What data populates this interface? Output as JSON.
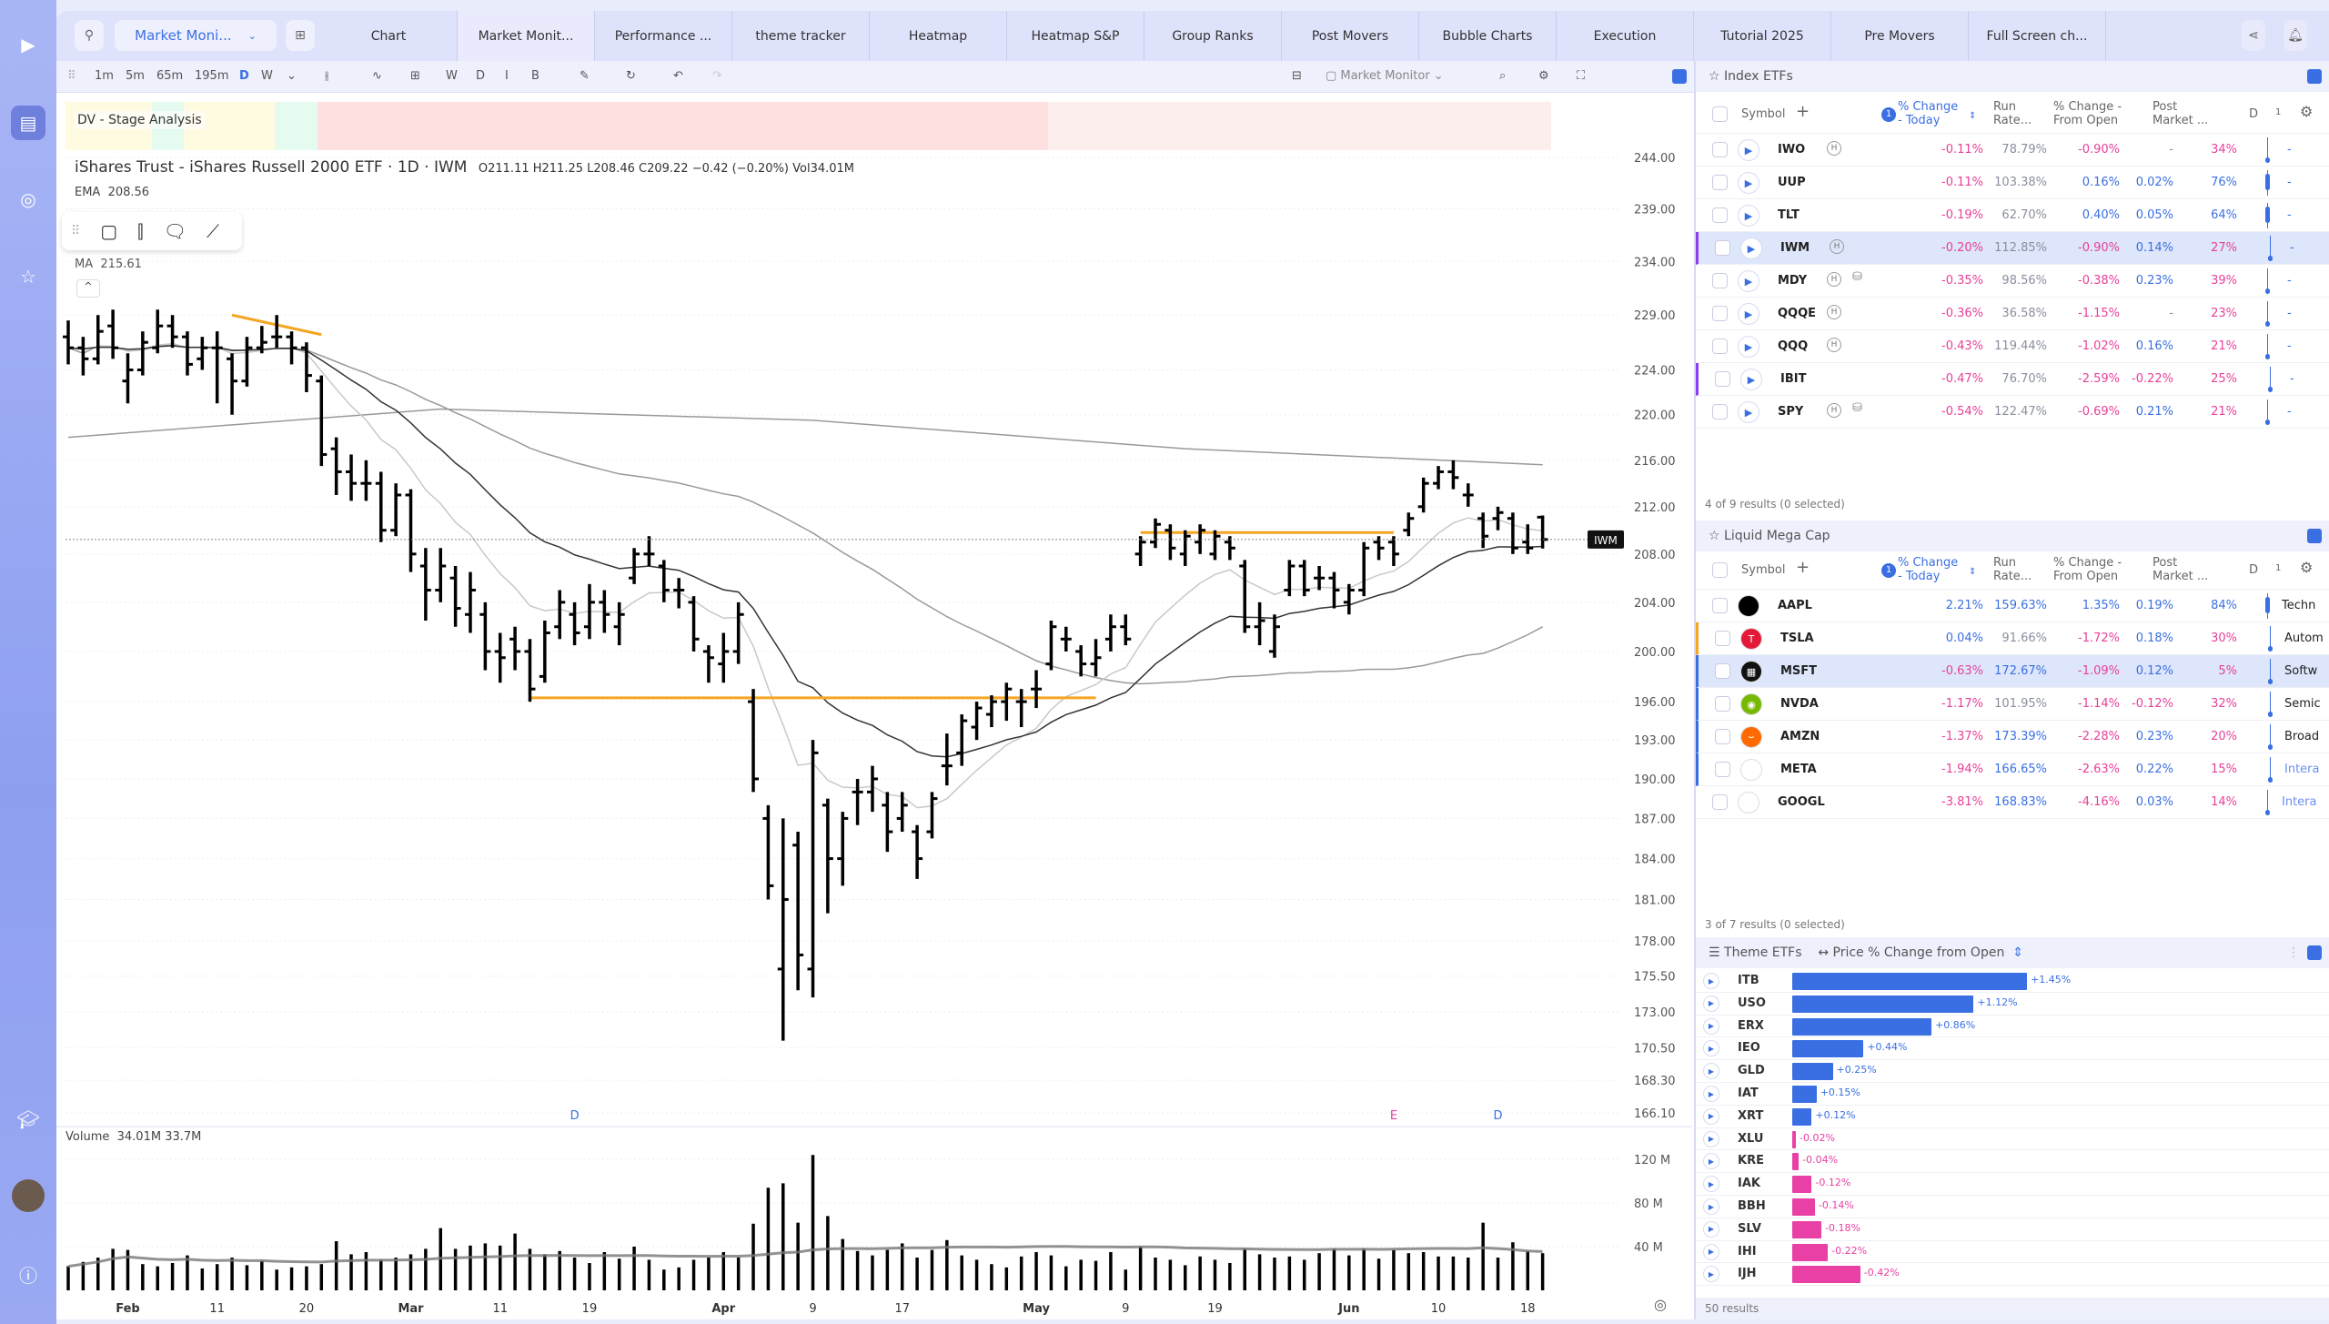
{
  "topbar": {
    "layout_select": "Market Moni...",
    "tabs": [
      "Chart",
      "Market Monit...",
      "Performance ...",
      "theme tracker",
      "Heatmap",
      "Heatmap S&P",
      "Group Ranks",
      "Post Movers",
      "Bubble Charts",
      "Execution",
      "Tutorial 2025",
      "Pre Movers",
      "Full Screen ch..."
    ],
    "active_tab": 1
  },
  "toolbar": {
    "intervals": [
      "1m",
      "5m",
      "65m",
      "195m",
      "D",
      "W"
    ],
    "active_interval": "D",
    "toggles": [
      "W",
      "D",
      "I",
      "B"
    ],
    "watchlist_select": "Market Monitor"
  },
  "chart": {
    "stage_label": "DV - Stage Analysis",
    "title": "iShares Trust - iShares Russell 2000 ETF · 1D · IWM",
    "ohlc_text": "O211.11 H211.25 L208.46 C209.22 −0.42 (−0.20%) Vol34.01M",
    "ema_label": "EMA",
    "ema_value": "208.56",
    "ma_label": "MA",
    "ma_value": "215.61",
    "price_tag": "IWM",
    "volume_label": "Volume",
    "volume_value": "34.01M",
    "volume_ma_value": "33.7M",
    "colors": {
      "bar": "#000000",
      "level": "#f5a623",
      "up": "#3a6fe3",
      "down": "#e8409a"
    }
  },
  "chart_data": {
    "type": "ohlc",
    "symbol": "IWM",
    "ylim": [
      166.1,
      244
    ],
    "yscale": "log",
    "price_ticks": [
      "244.00",
      "239.00",
      "234.00",
      "229.00",
      "224.00",
      "220.00",
      "216.00",
      "212.00",
      "208.00",
      "204.00",
      "200.00",
      "196.00",
      "193.00",
      "190.00",
      "187.00",
      "184.00",
      "181.00",
      "178.00",
      "175.50",
      "173.00",
      "170.50",
      "168.30",
      "166.10"
    ],
    "volume_ticks": [
      {
        "label": "120 M",
        "value": 120
      },
      {
        "label": "80 M",
        "value": 80
      },
      {
        "label": "40 M",
        "value": 40
      }
    ],
    "x_ticks": [
      {
        "label": "Feb",
        "i": 4
      },
      {
        "label": "11",
        "i": 10
      },
      {
        "label": "20",
        "i": 16
      },
      {
        "label": "Mar",
        "i": 23
      },
      {
        "label": "11",
        "i": 29
      },
      {
        "label": "19",
        "i": 35
      },
      {
        "label": "Apr",
        "i": 44
      },
      {
        "label": "9",
        "i": 50
      },
      {
        "label": "17",
        "i": 56
      },
      {
        "label": "May",
        "i": 65
      },
      {
        "label": "9",
        "i": 71
      },
      {
        "label": "19",
        "i": 77
      },
      {
        "label": "Jun",
        "i": 86
      },
      {
        "label": "10",
        "i": 92
      },
      {
        "label": "18",
        "i": 98
      }
    ],
    "events": [
      {
        "label": "D",
        "i": 34,
        "color": "#3a6fe3"
      },
      {
        "label": "E",
        "i": 89,
        "color": "#e8409a"
      },
      {
        "label": "D",
        "i": 96,
        "color": "#3a6fe3"
      }
    ],
    "levels": [
      {
        "from": 11,
        "to": 17,
        "p0": 229,
        "p1": 227.2
      },
      {
        "from": 31,
        "to": 69,
        "p0": 196.3,
        "p1": 196.3
      },
      {
        "from": 72,
        "to": 89,
        "p0": 209.8,
        "p1": 209.8
      }
    ],
    "last_price": 209.22,
    "ma200": [
      [
        0,
        218
      ],
      [
        25,
        220.5
      ],
      [
        50,
        219.5
      ],
      [
        75,
        217
      ],
      [
        99,
        215.61
      ]
    ],
    "ohlc": [
      [
        227,
        228.5,
        224.5,
        226
      ],
      [
        226,
        227,
        223.5,
        225
      ],
      [
        225,
        229,
        224.5,
        227.5
      ],
      [
        228,
        229.5,
        225,
        226
      ],
      [
        223,
        225.5,
        221,
        224
      ],
      [
        224,
        227.5,
        223.5,
        226.5
      ],
      [
        226,
        229.5,
        225.5,
        228
      ],
      [
        228,
        229,
        226,
        227
      ],
      [
        227,
        227.5,
        223.5,
        224.5
      ],
      [
        225,
        227,
        224,
        226
      ],
      [
        226,
        227.5,
        221,
        226
      ],
      [
        225,
        225.5,
        220,
        223
      ],
      [
        223,
        227,
        222.5,
        226
      ],
      [
        226,
        228,
        225.5,
        226.5
      ],
      [
        227,
        229,
        226,
        227
      ],
      [
        227,
        227.5,
        224.5,
        226
      ],
      [
        226,
        226.5,
        222,
        223.5
      ],
      [
        223,
        223.5,
        215.5,
        216.5
      ],
      [
        217,
        218,
        213,
        215
      ],
      [
        215,
        216.5,
        212.5,
        214
      ],
      [
        214,
        216,
        212.5,
        214
      ],
      [
        214,
        215,
        209,
        210
      ],
      [
        210,
        214,
        209.5,
        213
      ],
      [
        213,
        213.5,
        206.5,
        208
      ],
      [
        207,
        208.5,
        202.5,
        205
      ],
      [
        205,
        208.5,
        204,
        207
      ],
      [
        206,
        207,
        202,
        203.5
      ],
      [
        203,
        206.5,
        201.5,
        205
      ],
      [
        203,
        204,
        198.5,
        200
      ],
      [
        200,
        201.5,
        197.5,
        199.5
      ],
      [
        201,
        202,
        198.5,
        200
      ],
      [
        200,
        201,
        196,
        197
      ],
      [
        198,
        202.5,
        197.5,
        201.5
      ],
      [
        202,
        205,
        201,
        204
      ],
      [
        203,
        204,
        200.5,
        201.5
      ],
      [
        202,
        205.5,
        201,
        204
      ],
      [
        204,
        205,
        201.5,
        203
      ],
      [
        202,
        204,
        200.5,
        203
      ],
      [
        206,
        208.5,
        205.5,
        208
      ],
      [
        208,
        209.5,
        207,
        208
      ],
      [
        207,
        207.5,
        204,
        205
      ],
      [
        205,
        206,
        203.5,
        205
      ],
      [
        204,
        204.5,
        200,
        201
      ],
      [
        200,
        200.5,
        197.5,
        199.5
      ],
      [
        199,
        201.5,
        197.5,
        200
      ],
      [
        200,
        204,
        199,
        203
      ],
      [
        196,
        197,
        189,
        190
      ],
      [
        187,
        188,
        181,
        182
      ],
      [
        176,
        187,
        171,
        181
      ],
      [
        185,
        186,
        174.5,
        177
      ],
      [
        176,
        193,
        174,
        192
      ],
      [
        188,
        188.5,
        180,
        184
      ],
      [
        184,
        187.5,
        182,
        187
      ],
      [
        189,
        190,
        186.5,
        189
      ],
      [
        189,
        191,
        187.5,
        190
      ],
      [
        188,
        189,
        184.5,
        186
      ],
      [
        187,
        189,
        186,
        188
      ],
      [
        186,
        186.5,
        182.5,
        184
      ],
      [
        186,
        189,
        185.5,
        188.5
      ],
      [
        191,
        193.5,
        189.5,
        191
      ],
      [
        192,
        195,
        191,
        194.5
      ],
      [
        194,
        196,
        193,
        195.5
      ],
      [
        195,
        196.5,
        194,
        196
      ],
      [
        196,
        197.5,
        194.5,
        197
      ],
      [
        196,
        197,
        194,
        196
      ],
      [
        197,
        198.5,
        195.5,
        197
      ],
      [
        199,
        202.5,
        198.5,
        202
      ],
      [
        201,
        202,
        200,
        201
      ],
      [
        200,
        200.5,
        198,
        199
      ],
      [
        199,
        201,
        198,
        199.5
      ],
      [
        201,
        203,
        200,
        202
      ],
      [
        202,
        203,
        200.5,
        201
      ],
      [
        208,
        209.5,
        207,
        209
      ],
      [
        209,
        211,
        208.5,
        210.5
      ],
      [
        210,
        210.5,
        207.5,
        208.5
      ],
      [
        208,
        210,
        207,
        209.5
      ],
      [
        209,
        210.5,
        208,
        210
      ],
      [
        208,
        210,
        207.5,
        209.5
      ],
      [
        209,
        209.5,
        207.5,
        208.5
      ],
      [
        207,
        207.5,
        201.5,
        202
      ],
      [
        202,
        204,
        200.5,
        202.5
      ],
      [
        200,
        203,
        199.5,
        202
      ],
      [
        205,
        207.5,
        204.5,
        207
      ],
      [
        207,
        207.5,
        204.5,
        205
      ],
      [
        206,
        207,
        205,
        206
      ],
      [
        206,
        206.5,
        203.5,
        205
      ],
      [
        204,
        205.5,
        203,
        205
      ],
      [
        205,
        209,
        204.5,
        208.5
      ],
      [
        209,
        209.5,
        207.5,
        208.5
      ],
      [
        209,
        209.5,
        207,
        208
      ],
      [
        210,
        211.5,
        209.5,
        211
      ],
      [
        212,
        214.5,
        211.5,
        214
      ],
      [
        214,
        215.5,
        213.5,
        215
      ],
      [
        215,
        216,
        213.5,
        214.5
      ],
      [
        213,
        214,
        212,
        213
      ],
      [
        211,
        211.5,
        208.5,
        209.5
      ],
      [
        211,
        212,
        210,
        211.5
      ],
      [
        211,
        211.5,
        208,
        208.5
      ],
      [
        209,
        210.5,
        208,
        208.5
      ],
      [
        211.11,
        211.25,
        208.46,
        209.22
      ]
    ],
    "volume": [
      22,
      26,
      30,
      38,
      37,
      24,
      22,
      25,
      32,
      20,
      24,
      30,
      23,
      27,
      19,
      21,
      22,
      24,
      45,
      33,
      35,
      28,
      30,
      33,
      38,
      57,
      38,
      41,
      43,
      41,
      52,
      38,
      33,
      36,
      30,
      25,
      35,
      29,
      40,
      28,
      19,
      21,
      28,
      30,
      35,
      30,
      61,
      94,
      98,
      62,
      124,
      68,
      47,
      36,
      32,
      37,
      43,
      30,
      37,
      46,
      32,
      28,
      24,
      21,
      31,
      35,
      32,
      22,
      28,
      27,
      35,
      19,
      40,
      30,
      28,
      23,
      31,
      28,
      25,
      38,
      33,
      30,
      31,
      28,
      34,
      38,
      32,
      38,
      29,
      37,
      34,
      35,
      31,
      31,
      30,
      62,
      30,
      44,
      36,
      34
    ]
  },
  "index_etfs": {
    "title": "Index ETFs",
    "headers": {
      "symbol": "Symbol",
      "sort_badge": "1",
      "chg_today": "% Change - Today",
      "run_rate": "Run Rate...",
      "chg_open": "% Change - From Open",
      "post": "Post Market ...",
      "d": "D",
      "one": "1"
    },
    "rows": [
      {
        "sym": "IWO",
        "h": true,
        "db": false,
        "chg": "-0.11%",
        "run": "78.79%",
        "open": "-0.90%",
        "post": "-",
        "d": "34%",
        "dv": 34
      },
      {
        "sym": "UUP",
        "h": false,
        "db": false,
        "chg": "-0.11%",
        "run": "103.38%",
        "open": "0.16%",
        "post": "0.02%",
        "d": "76%",
        "dv": 76
      },
      {
        "sym": "TLT",
        "h": false,
        "db": false,
        "chg": "-0.19%",
        "run": "62.70%",
        "open": "0.40%",
        "post": "0.05%",
        "d": "64%",
        "dv": 64
      },
      {
        "sym": "IWM",
        "h": true,
        "db": false,
        "chg": "-0.20%",
        "run": "112.85%",
        "open": "-0.90%",
        "post": "0.14%",
        "d": "27%",
        "dv": 27,
        "hl": true,
        "mark": "#8b3ff0"
      },
      {
        "sym": "MDY",
        "h": true,
        "db": true,
        "chg": "-0.35%",
        "run": "98.56%",
        "open": "-0.38%",
        "post": "0.23%",
        "d": "39%",
        "dv": 39
      },
      {
        "sym": "QQQE",
        "h": true,
        "db": false,
        "chg": "-0.36%",
        "run": "36.58%",
        "open": "-1.15%",
        "post": "-",
        "d": "23%",
        "dv": 23
      },
      {
        "sym": "QQQ",
        "h": true,
        "db": false,
        "chg": "-0.43%",
        "run": "119.44%",
        "open": "-1.02%",
        "post": "0.16%",
        "d": "21%",
        "dv": 21
      },
      {
        "sym": "IBIT",
        "h": false,
        "db": false,
        "chg": "-0.47%",
        "run": "76.70%",
        "open": "-2.59%",
        "post": "-0.22%",
        "d": "25%",
        "dv": 25,
        "mark": "#8b3ff0"
      },
      {
        "sym": "SPY",
        "h": true,
        "db": true,
        "chg": "-0.54%",
        "run": "122.47%",
        "open": "-0.69%",
        "post": "0.21%",
        "d": "21%",
        "dv": 21
      }
    ],
    "footer": "4 of 9 results (0 selected)"
  },
  "mega_cap": {
    "title": "Liquid Mega Cap",
    "rows": [
      {
        "sym": "AAPL",
        "logo": "",
        "logo_bg": "#000",
        "chg": "2.21%",
        "run": "159.63%",
        "open": "1.35%",
        "post": "0.19%",
        "d": "84%",
        "dv": 84,
        "sector": "Techn"
      },
      {
        "sym": "TSLA",
        "logo": "T",
        "logo_bg": "#e31937",
        "chg": "0.04%",
        "run": "91.66%",
        "open": "-1.72%",
        "post": "0.18%",
        "d": "30%",
        "dv": 30,
        "sector": "Autom",
        "mark": "#f5a623"
      },
      {
        "sym": "MSFT",
        "logo": "▦",
        "logo_bg": "#111",
        "chg": "-0.63%",
        "run": "172.67%",
        "open": "-1.09%",
        "post": "0.12%",
        "d": "5%",
        "dv": 5,
        "sector": "Softw",
        "hl": true,
        "mark": "#3a6fe3"
      },
      {
        "sym": "NVDA",
        "logo": "◉",
        "logo_bg": "#76b900",
        "chg": "-1.17%",
        "run": "101.95%",
        "open": "-1.14%",
        "post": "-0.12%",
        "d": "32%",
        "dv": 32,
        "sector": "Semic",
        "mark": "#3a6fe3"
      },
      {
        "sym": "AMZN",
        "logo": "⌣",
        "logo_bg": "#ff6a00",
        "chg": "-1.37%",
        "run": "173.39%",
        "open": "-2.28%",
        "post": "0.23%",
        "d": "20%",
        "dv": 20,
        "sector": "Broad",
        "mark": "#3a6fe3"
      },
      {
        "sym": "META",
        "logo": "∞",
        "logo_bg": "#fff",
        "chg": "-1.94%",
        "run": "166.65%",
        "open": "-2.63%",
        "post": "0.22%",
        "d": "15%",
        "dv": 15,
        "sector": "Intera",
        "mark": "#3a6fe3",
        "sector_link": true
      },
      {
        "sym": "GOOGL",
        "logo": "·",
        "logo_bg": "#fff",
        "chg": "-3.81%",
        "run": "168.83%",
        "open": "-4.16%",
        "post": "0.03%",
        "d": "14%",
        "dv": 14,
        "sector": "Intera",
        "sector_link": true
      }
    ],
    "footer": "3 of 7 results (0 selected)"
  },
  "theme_etfs": {
    "title": "Theme ETFs",
    "metric": "Price % Change from Open",
    "footer": "50 results",
    "rows": [
      {
        "sym": "ITB",
        "v": 1.45,
        "label": "+1.45%"
      },
      {
        "sym": "USO",
        "v": 1.12,
        "label": "+1.12%"
      },
      {
        "sym": "ERX",
        "v": 0.86,
        "label": "+0.86%"
      },
      {
        "sym": "IEO",
        "v": 0.44,
        "label": "+0.44%"
      },
      {
        "sym": "GLD",
        "v": 0.25,
        "label": "+0.25%"
      },
      {
        "sym": "IAT",
        "v": 0.15,
        "label": "+0.15%"
      },
      {
        "sym": "XRT",
        "v": 0.12,
        "label": "+0.12%"
      },
      {
        "sym": "XLU",
        "v": -0.02,
        "label": "-0.02%"
      },
      {
        "sym": "KRE",
        "v": -0.04,
        "label": "-0.04%"
      },
      {
        "sym": "IAK",
        "v": -0.12,
        "label": "-0.12%"
      },
      {
        "sym": "BBH",
        "v": -0.14,
        "label": "-0.14%"
      },
      {
        "sym": "SLV",
        "v": -0.18,
        "label": "-0.18%"
      },
      {
        "sym": "IHI",
        "v": -0.22,
        "label": "-0.22%"
      },
      {
        "sym": "IJH",
        "v": -0.42,
        "label": "-0.42%"
      }
    ]
  }
}
